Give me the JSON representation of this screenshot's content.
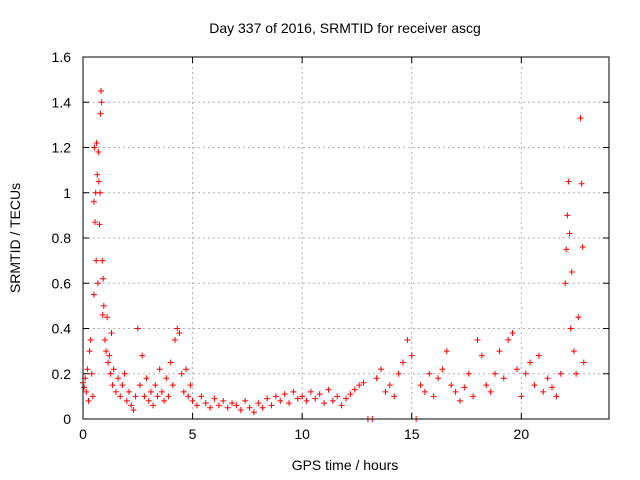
{
  "chart_data": {
    "type": "scatter",
    "title": "Day 337 of 2016, SRMTID for receiver ascg",
    "xlabel": "GPS time / hours",
    "ylabel": "SRMTID / TECUs",
    "xlim": [
      0,
      24
    ],
    "ylim": [
      0,
      1.6
    ],
    "xticks": [
      0,
      5,
      10,
      15,
      20
    ],
    "xtick_labels": [
      "0",
      "5",
      "10",
      "15",
      "20"
    ],
    "yticks": [
      0,
      0.2,
      0.4,
      0.6,
      0.8,
      1.0,
      1.2,
      1.4,
      1.6
    ],
    "ytick_labels": [
      "0",
      "0.2",
      "0.4",
      "0.6",
      "0.8",
      "1",
      "1.2",
      "1.4",
      "1.6"
    ],
    "grid": true,
    "marker": "+",
    "colors": {
      "series": "#ff0000",
      "grid": "#b0b0b0",
      "axes": "#000000"
    },
    "series": [
      {
        "name": "SRMTID",
        "points": [
          [
            0.0,
            0.16
          ],
          [
            0.05,
            0.14
          ],
          [
            0.1,
            0.18
          ],
          [
            0.15,
            0.12
          ],
          [
            0.2,
            0.22
          ],
          [
            0.25,
            0.08
          ],
          [
            0.3,
            0.3
          ],
          [
            0.35,
            0.35
          ],
          [
            0.4,
            0.2
          ],
          [
            0.45,
            0.1
          ],
          [
            0.5,
            0.55
          ],
          [
            0.5,
            0.96
          ],
          [
            0.52,
            1.2
          ],
          [
            0.55,
            0.87
          ],
          [
            0.58,
            1.0
          ],
          [
            0.6,
            0.7
          ],
          [
            0.62,
            1.22
          ],
          [
            0.65,
            1.08
          ],
          [
            0.68,
            0.6
          ],
          [
            0.7,
            1.18
          ],
          [
            0.72,
            1.05
          ],
          [
            0.75,
            0.86
          ],
          [
            0.78,
            1.0
          ],
          [
            0.8,
            1.35
          ],
          [
            0.82,
            1.45
          ],
          [
            0.85,
            1.4
          ],
          [
            0.88,
            0.7
          ],
          [
            0.9,
            0.46
          ],
          [
            0.92,
            0.62
          ],
          [
            0.95,
            0.5
          ],
          [
            1.0,
            0.35
          ],
          [
            1.05,
            0.3
          ],
          [
            1.1,
            0.45
          ],
          [
            1.15,
            0.25
          ],
          [
            1.2,
            0.28
          ],
          [
            1.25,
            0.2
          ],
          [
            1.3,
            0.38
          ],
          [
            1.35,
            0.15
          ],
          [
            1.4,
            0.22
          ],
          [
            1.5,
            0.12
          ],
          [
            1.6,
            0.18
          ],
          [
            1.7,
            0.1
          ],
          [
            1.8,
            0.15
          ],
          [
            1.9,
            0.2
          ],
          [
            2.0,
            0.08
          ],
          [
            2.1,
            0.12
          ],
          [
            2.2,
            0.06
          ],
          [
            2.3,
            0.04
          ],
          [
            2.4,
            0.1
          ],
          [
            2.5,
            0.4
          ],
          [
            2.6,
            0.15
          ],
          [
            2.7,
            0.28
          ],
          [
            2.8,
            0.1
          ],
          [
            2.9,
            0.18
          ],
          [
            3.0,
            0.08
          ],
          [
            3.1,
            0.12
          ],
          [
            3.2,
            0.06
          ],
          [
            3.3,
            0.15
          ],
          [
            3.4,
            0.1
          ],
          [
            3.5,
            0.22
          ],
          [
            3.6,
            0.12
          ],
          [
            3.7,
            0.08
          ],
          [
            3.8,
            0.18
          ],
          [
            3.9,
            0.1
          ],
          [
            4.0,
            0.25
          ],
          [
            4.1,
            0.15
          ],
          [
            4.2,
            0.35
          ],
          [
            4.3,
            0.4
          ],
          [
            4.4,
            0.38
          ],
          [
            4.5,
            0.2
          ],
          [
            4.6,
            0.12
          ],
          [
            4.7,
            0.22
          ],
          [
            4.8,
            0.1
          ],
          [
            4.9,
            0.15
          ],
          [
            5.0,
            0.08
          ],
          [
            5.2,
            0.06
          ],
          [
            5.4,
            0.1
          ],
          [
            5.6,
            0.07
          ],
          [
            5.8,
            0.05
          ],
          [
            6.0,
            0.09
          ],
          [
            6.2,
            0.06
          ],
          [
            6.4,
            0.08
          ],
          [
            6.6,
            0.05
          ],
          [
            6.8,
            0.07
          ],
          [
            7.0,
            0.06
          ],
          [
            7.2,
            0.04
          ],
          [
            7.4,
            0.08
          ],
          [
            7.6,
            0.05
          ],
          [
            7.8,
            0.03
          ],
          [
            8.0,
            0.07
          ],
          [
            8.2,
            0.05
          ],
          [
            8.4,
            0.09
          ],
          [
            8.6,
            0.06
          ],
          [
            8.8,
            0.1
          ],
          [
            9.0,
            0.08
          ],
          [
            9.2,
            0.11
          ],
          [
            9.4,
            0.07
          ],
          [
            9.6,
            0.12
          ],
          [
            9.8,
            0.09
          ],
          [
            10.0,
            0.1
          ],
          [
            10.2,
            0.08
          ],
          [
            10.4,
            0.12
          ],
          [
            10.6,
            0.09
          ],
          [
            10.8,
            0.11
          ],
          [
            11.0,
            0.07
          ],
          [
            11.2,
            0.13
          ],
          [
            11.4,
            0.08
          ],
          [
            11.6,
            0.1
          ],
          [
            11.8,
            0.06
          ],
          [
            12.0,
            0.09
          ],
          [
            12.2,
            0.11
          ],
          [
            12.4,
            0.13
          ],
          [
            12.6,
            0.15
          ],
          [
            12.8,
            0.16
          ],
          [
            13.0,
            0.0
          ],
          [
            13.2,
            0.0
          ],
          [
            13.4,
            0.18
          ],
          [
            13.6,
            0.22
          ],
          [
            13.8,
            0.12
          ],
          [
            14.0,
            0.15
          ],
          [
            14.2,
            0.1
          ],
          [
            14.4,
            0.2
          ],
          [
            14.6,
            0.25
          ],
          [
            14.8,
            0.35
          ],
          [
            15.0,
            0.28
          ],
          [
            15.2,
            0.0
          ],
          [
            15.4,
            0.15
          ],
          [
            15.6,
            0.12
          ],
          [
            15.8,
            0.2
          ],
          [
            16.0,
            0.1
          ],
          [
            16.2,
            0.18
          ],
          [
            16.4,
            0.22
          ],
          [
            16.6,
            0.3
          ],
          [
            16.8,
            0.15
          ],
          [
            17.0,
            0.12
          ],
          [
            17.2,
            0.08
          ],
          [
            17.4,
            0.14
          ],
          [
            17.6,
            0.2
          ],
          [
            17.8,
            0.1
          ],
          [
            18.0,
            0.35
          ],
          [
            18.2,
            0.28
          ],
          [
            18.4,
            0.15
          ],
          [
            18.6,
            0.12
          ],
          [
            18.8,
            0.2
          ],
          [
            19.0,
            0.3
          ],
          [
            19.2,
            0.18
          ],
          [
            19.4,
            0.35
          ],
          [
            19.6,
            0.38
          ],
          [
            19.8,
            0.22
          ],
          [
            20.0,
            0.1
          ],
          [
            20.2,
            0.2
          ],
          [
            20.4,
            0.25
          ],
          [
            20.6,
            0.15
          ],
          [
            20.8,
            0.28
          ],
          [
            21.0,
            0.12
          ],
          [
            21.2,
            0.18
          ],
          [
            21.4,
            0.14
          ],
          [
            21.6,
            0.1
          ],
          [
            21.8,
            0.2
          ],
          [
            22.0,
            0.6
          ],
          [
            22.05,
            0.75
          ],
          [
            22.1,
            0.9
          ],
          [
            22.15,
            1.05
          ],
          [
            22.2,
            0.82
          ],
          [
            22.25,
            0.4
          ],
          [
            22.3,
            0.65
          ],
          [
            22.4,
            0.3
          ],
          [
            22.5,
            0.2
          ],
          [
            22.6,
            0.45
          ],
          [
            22.7,
            1.33
          ],
          [
            22.75,
            1.04
          ],
          [
            22.8,
            0.76
          ],
          [
            22.85,
            0.25
          ]
        ]
      }
    ]
  }
}
